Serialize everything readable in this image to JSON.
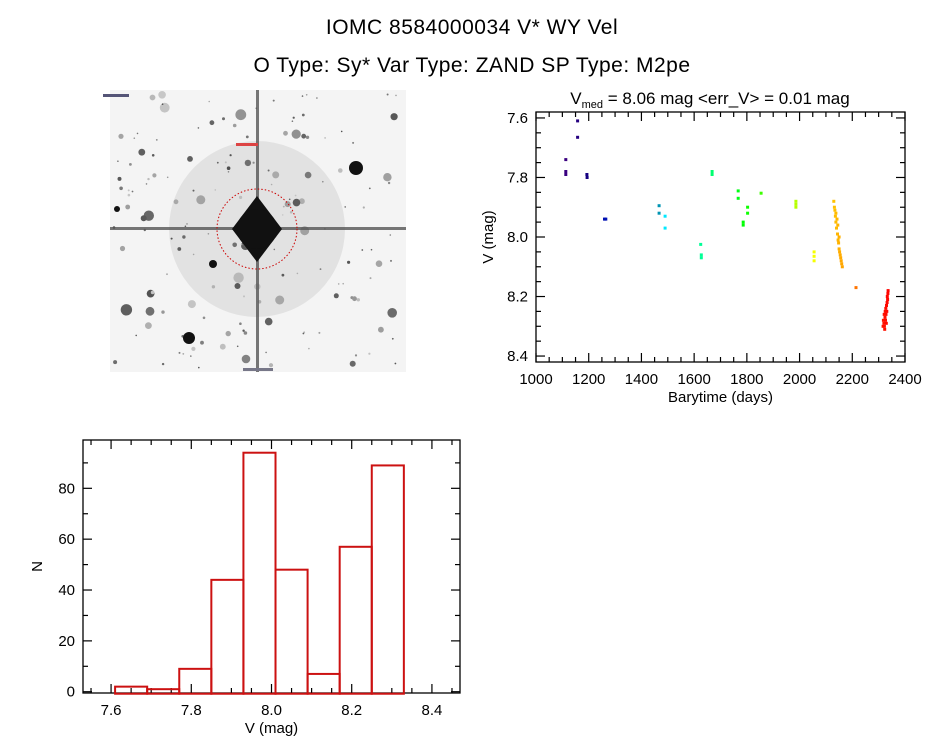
{
  "title": {
    "line1": "IOMC 8584000034    V* WY Vel",
    "line2": "O Type: Sy*   Var Type: ZAND   SP Type: M2pe"
  },
  "finder_image": {
    "description_icon": "star-field-finder-chart",
    "circle_color": "#cc0000"
  },
  "chart_data": [
    {
      "type": "scatter",
      "title_main": "V",
      "title_sub": "med",
      "title_rest": " = 8.06 mag <err_V> = 0.01 mag",
      "xlabel": "Barytime (days)",
      "ylabel": "V (mag)",
      "xlim": [
        1000,
        2400
      ],
      "ylim": [
        8.42,
        7.58
      ],
      "y_inverted": true,
      "xticks": [
        1000,
        1200,
        1400,
        1600,
        1800,
        2000,
        2200,
        2400
      ],
      "xtick_labels": [
        "1000",
        "1200",
        "1400",
        "1600",
        "1800",
        "2000",
        "2200",
        "2400"
      ],
      "yticks": [
        7.6,
        7.8,
        8.0,
        8.2,
        8.4
      ],
      "ytick_labels": [
        "7.6",
        "7.8",
        "8.0",
        "8.2",
        "8.4"
      ],
      "color_scale": "rainbow by time",
      "points": [
        [
          1113,
          7.74
        ],
        [
          1113,
          7.78
        ],
        [
          1113,
          7.79
        ],
        [
          1158,
          7.61
        ],
        [
          1158,
          7.665
        ],
        [
          1193,
          7.79
        ],
        [
          1194,
          7.8
        ],
        [
          1260,
          7.94
        ],
        [
          1265,
          7.94
        ],
        [
          1467,
          7.895
        ],
        [
          1467,
          7.92
        ],
        [
          1490,
          7.93
        ],
        [
          1490,
          7.97
        ],
        [
          1625,
          8.025
        ],
        [
          1627,
          8.06
        ],
        [
          1627,
          8.07
        ],
        [
          1668,
          7.78
        ],
        [
          1668,
          7.79
        ],
        [
          1767,
          7.845
        ],
        [
          1767,
          7.87
        ],
        [
          1786,
          7.95
        ],
        [
          1786,
          7.96
        ],
        [
          1803,
          7.9
        ],
        [
          1803,
          7.92
        ],
        [
          1854,
          7.853
        ],
        [
          1986,
          7.88
        ],
        [
          1986,
          7.89
        ],
        [
          1986,
          7.9
        ],
        [
          2055,
          8.05
        ],
        [
          2055,
          8.065
        ],
        [
          2055,
          8.08
        ],
        [
          2130,
          7.88
        ],
        [
          2132,
          7.9
        ],
        [
          2134,
          7.91
        ],
        [
          2136,
          7.93
        ],
        [
          2138,
          7.95
        ],
        [
          2140,
          7.97
        ],
        [
          2142,
          7.94
        ],
        [
          2144,
          7.99
        ],
        [
          2146,
          8.01
        ],
        [
          2148,
          8.02
        ],
        [
          2150,
          8.04
        ],
        [
          2152,
          8.05
        ],
        [
          2154,
          8.06
        ],
        [
          2156,
          8.07
        ],
        [
          2158,
          8.08
        ],
        [
          2160,
          8.09
        ],
        [
          2162,
          8.1
        ],
        [
          2138,
          7.92
        ],
        [
          2145,
          7.96
        ],
        [
          2150,
          8.0
        ],
        [
          2214,
          8.17
        ],
        [
          2317,
          8.3
        ],
        [
          2318,
          8.28
        ],
        [
          2320,
          8.29
        ],
        [
          2321,
          8.26
        ],
        [
          2322,
          8.3
        ],
        [
          2324,
          8.27
        ],
        [
          2325,
          8.25
        ],
        [
          2326,
          8.28
        ],
        [
          2327,
          8.24
        ],
        [
          2328,
          8.26
        ],
        [
          2330,
          8.23
        ],
        [
          2331,
          8.25
        ],
        [
          2332,
          8.22
        ],
        [
          2333,
          8.2
        ],
        [
          2334,
          8.21
        ],
        [
          2335,
          8.19
        ],
        [
          2336,
          8.18
        ],
        [
          2329,
          8.29
        ],
        [
          2323,
          8.31
        ]
      ]
    },
    {
      "type": "bar",
      "histogram": true,
      "xlabel": "V (mag)",
      "ylabel": "N",
      "xlim": [
        7.53,
        8.47
      ],
      "ylim": [
        -0.5,
        99
      ],
      "bin_edges": [
        7.61,
        7.69,
        7.77,
        7.85,
        7.93,
        8.01,
        8.09,
        8.17,
        8.25,
        8.33
      ],
      "values": [
        2,
        1,
        9,
        44,
        94,
        48,
        7,
        57,
        89
      ],
      "bar_color": "#cc1111",
      "xticks": [
        7.6,
        7.8,
        8.0,
        8.2,
        8.4
      ],
      "xtick_labels": [
        "7.6",
        "7.8",
        "8.0",
        "8.2",
        "8.4"
      ],
      "yticks": [
        0,
        20,
        40,
        60,
        80
      ],
      "ytick_labels": [
        "0",
        "20",
        "40",
        "60",
        "80"
      ]
    }
  ]
}
